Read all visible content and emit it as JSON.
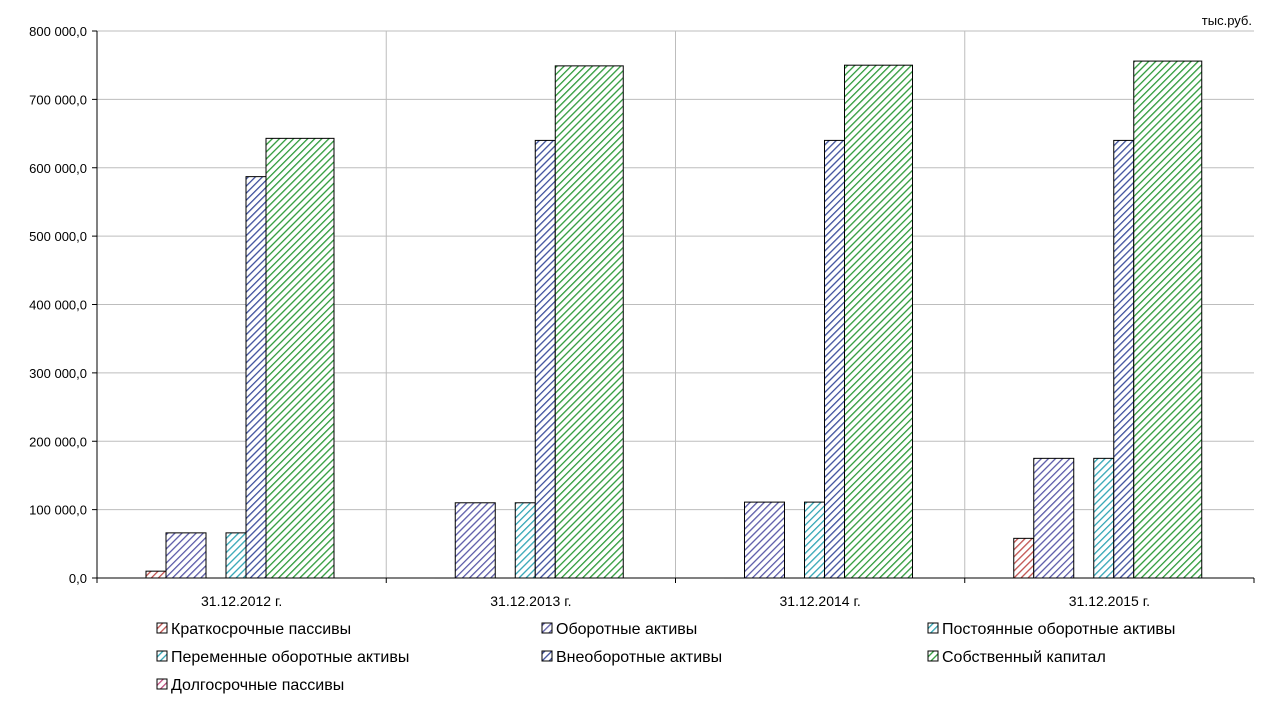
{
  "chart_data": {
    "type": "bar",
    "unit_label": "тыс.руб.",
    "categories": [
      "31.12.2012 г.",
      "31.12.2013 г.",
      "31.12.2014 г.",
      "31.12.2015 г."
    ],
    "ylim": [
      0,
      800000
    ],
    "y_ticks": [
      0,
      100000,
      200000,
      300000,
      400000,
      500000,
      600000,
      700000,
      800000
    ],
    "y_tick_labels": [
      "0,0",
      "100 000,0",
      "200 000,0",
      "300 000,0",
      "400 000,0",
      "500 000,0",
      "600 000,0",
      "700 000,0",
      "800 000,0"
    ],
    "grid": true,
    "legend_position": "bottom",
    "series": [
      {
        "name": "Краткосрочные пассивы",
        "values": [
          10000,
          0,
          0,
          58000
        ],
        "color": "#c0504d"
      },
      {
        "name": "Оборотные активы",
        "values": [
          66000,
          110000,
          111000,
          175000
        ],
        "color": "#5a5aa8"
      },
      {
        "name": "Постоянные оборотные активы",
        "values": [
          0,
          0,
          0,
          0
        ],
        "color": "#31a5b5"
      },
      {
        "name": "Переменные оборотные активы",
        "values": [
          66000,
          110000,
          111000,
          175000
        ],
        "color": "#31a5b5"
      },
      {
        "name": "Внеоборотные активы",
        "values": [
          587000,
          640000,
          640000,
          640000
        ],
        "color": "#3d4f9c"
      },
      {
        "name": "Собственный капитал",
        "values": [
          643000,
          749000,
          750000,
          756000
        ],
        "color": "#2e9a3a"
      },
      {
        "name": "Долгосрочные пассивы",
        "values": [
          0,
          0,
          0,
          0
        ],
        "color": "#c05080"
      }
    ]
  }
}
